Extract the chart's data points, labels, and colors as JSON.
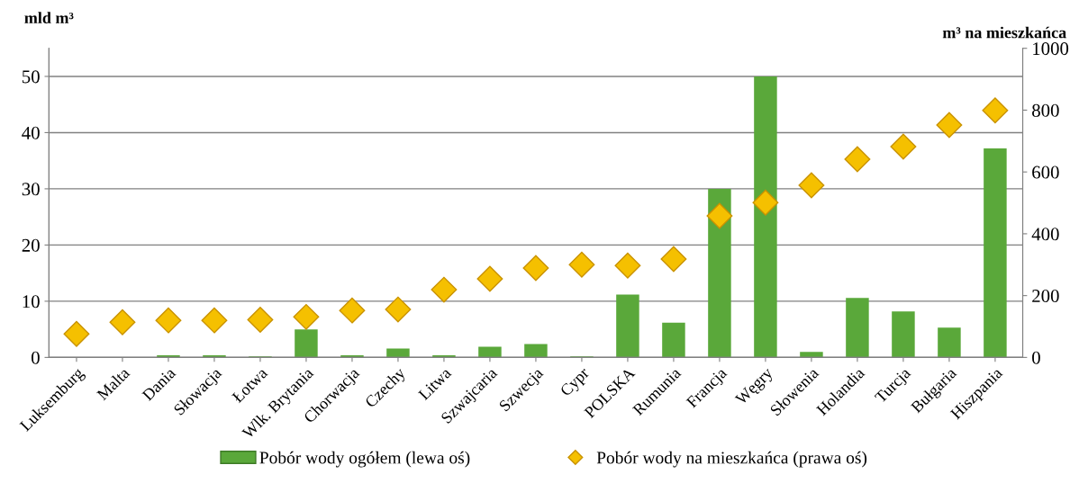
{
  "chart_data": {
    "type": "bar",
    "categories": [
      "Luksemburg",
      "Malta",
      "Dania",
      "Słowacja",
      "Łotwa",
      "Wlk. Brytania",
      "Chorwacja",
      "Czechy",
      "Litwa",
      "Szwajcaria",
      "Szwecja",
      "Cypr",
      "POLSKA",
      "Rumunia",
      "Francja",
      "Węgry",
      "Słowenia",
      "Holandia",
      "Turcja",
      "Bułgaria",
      "Hiszpania"
    ],
    "series": [
      {
        "name": "Pobór wody ogółem (lewa oś)",
        "color": "#5aa83a",
        "values": [
          0,
          0,
          0.4,
          0.4,
          0.2,
          5.0,
          0.4,
          1.6,
          0.4,
          1.9,
          2.4,
          0.2,
          11.2,
          6.2,
          30,
          50,
          1.0,
          10.6,
          8.2,
          5.3,
          37.2
        ]
      },
      {
        "name": "Pobór wody na mieszkańca (prawa oś)",
        "type": "scatter",
        "axis": "y2",
        "color": "#f5c000",
        "marker": "diamond",
        "values": [
          76,
          114,
          120,
          120,
          122,
          131,
          152,
          155,
          219,
          254,
          289,
          300,
          297,
          318,
          458,
          501,
          557,
          641,
          682,
          752,
          799
        ]
      }
    ],
    "ylabel": "mld m³",
    "y2label": "m³ na mieszkańca",
    "ylim": [
      0,
      55
    ],
    "yticks": [
      0,
      10,
      20,
      30,
      40,
      50
    ],
    "y2lim": [
      0,
      1000
    ],
    "y2ticks": [
      0,
      200,
      400,
      600,
      800,
      1000
    ],
    "grid": "y",
    "legend": "bottom"
  }
}
